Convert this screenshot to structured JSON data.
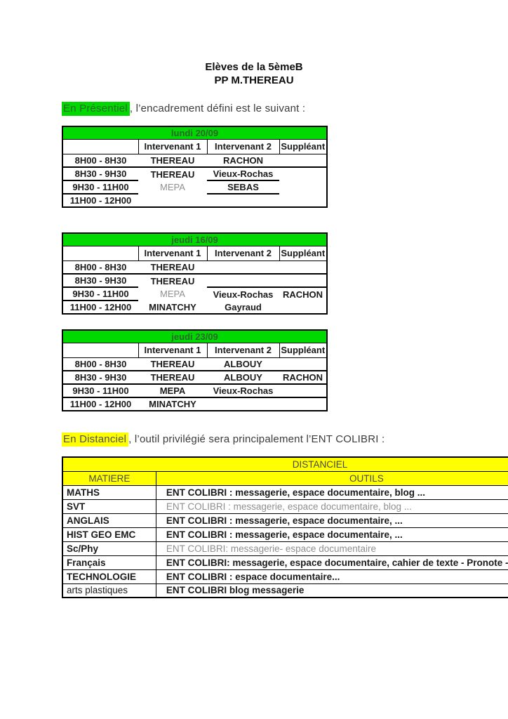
{
  "header": {
    "title_line1": "Elèves de la 5èmeB",
    "title_line2": "PP M.THEREAU"
  },
  "intro_presentiel": {
    "highlight": "En Présentiel",
    "rest": ", l’encadrement défini est le suivant :"
  },
  "intro_distanciel": {
    "highlight": "En Distanciel",
    "rest": ", l’outil privilégié sera principalement l’ENT COLIBRI :"
  },
  "colors": {
    "highlight_green": "#00d900",
    "highlight_yellow": "#ffff00",
    "muted_gray": "#8f8f8f",
    "border_black": "#000000"
  },
  "presentiel_tables": [
    {
      "date": "lundi 20/09",
      "columns": [
        "",
        "Intervenant 1",
        "Intervenant 2",
        "Suppléant"
      ],
      "rows": [
        {
          "time": "8H00 - 8H30",
          "i1": "THEREAU",
          "i2": "RACHON",
          "sup": ""
        },
        {
          "time": "8H30 - 9H30",
          "i1": "THEREAU",
          "i2": "Vieux-Rochas",
          "sup": ""
        },
        {
          "time": "9H30 - 11H00",
          "i1": "MEPA",
          "i2": "SEBAS",
          "sup": ""
        },
        {
          "time": "11H00 - 12H00",
          "i1": "",
          "i2": "",
          "sup": ""
        }
      ]
    },
    {
      "date": "jeudi 16/09",
      "columns": [
        "",
        "Intervenant 1",
        "Intervenant 2",
        "Suppléant"
      ],
      "rows": [
        {
          "time": "8H00 - 8H30",
          "i1": "THEREAU",
          "i2": "",
          "sup": ""
        },
        {
          "time": "8H30 - 9H30",
          "i1": "THEREAU",
          "i2": "",
          "sup": ""
        },
        {
          "time": "9H30 - 11H00",
          "i1": "MEPA",
          "i2": "Vieux-Rochas",
          "sup": "RACHON"
        },
        {
          "time": "11H00 - 12H00",
          "i1": "MINATCHY",
          "i2": "Gayraud",
          "sup": ""
        }
      ]
    },
    {
      "date": "jeudi 23/09",
      "columns": [
        "",
        "Intervenant 1",
        "Intervenant 2",
        "Suppléant"
      ],
      "rows": [
        {
          "time": "8H00 - 8H30",
          "i1": "THEREAU",
          "i2": "ALBOUY",
          "sup": ""
        },
        {
          "time": "8H30 - 9H30",
          "i1": "THEREAU",
          "i2": "ALBOUY",
          "sup": "RACHON"
        },
        {
          "time": "9H30 - 11H00",
          "i1": "MEPA",
          "i2": "Vieux-Rochas",
          "sup": ""
        },
        {
          "time": "11H00 - 12H00",
          "i1": "MINATCHY",
          "i2": "",
          "sup": ""
        }
      ]
    }
  ],
  "distanciel_table": {
    "title": "DISTANCIEL",
    "col_matiere": "MATIERE",
    "col_outils": "OUTILS",
    "rows": [
      {
        "matiere": "MATHS",
        "outils": "ENT COLIBRI : messagerie, espace documentaire, blog ..."
      },
      {
        "matiere": "SVT",
        "outils": "ENT COLIBRI : messagerie, espace documentaire, blog ..."
      },
      {
        "matiere": "ANGLAIS",
        "outils": "ENT COLIBRI : messagerie, espace documentaire, ..."
      },
      {
        "matiere": "HIST GEO EMC",
        "outils": "ENT COLIBRI : messagerie, espace documentaire, ..."
      },
      {
        "matiere": "Sc/Phy",
        "outils": "ENT COLIBRI: messagerie- espace documentaire"
      },
      {
        "matiere": "Français",
        "outils": "ENT COLIBRI: messagerie, espace documentaire, cahier de texte - Pronote - BigBlueButton"
      },
      {
        "matiere": "TECHNOLOGIE",
        "outils": "ENT COLIBRI : espace documentaire..."
      },
      {
        "matiere": "arts plastiques",
        "outils": "ENT COLIBRI blog messagerie"
      }
    ]
  }
}
